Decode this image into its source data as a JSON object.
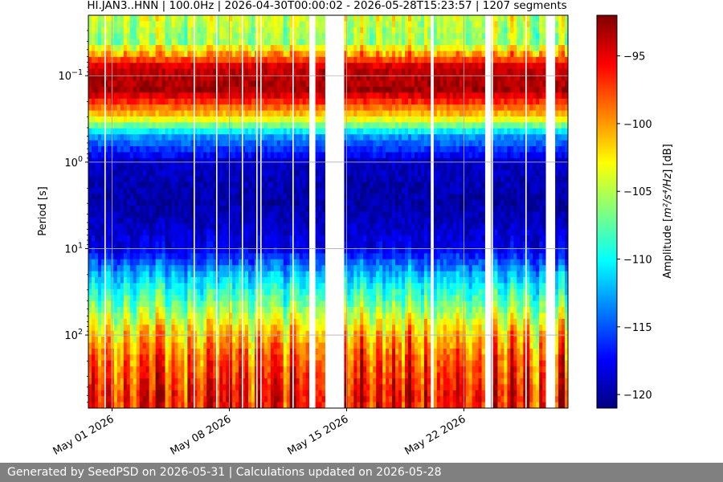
{
  "chart_data": {
    "type": "heatmap",
    "title": "HI.JAN3..HNN | 100.0Hz | 2026-04-30T00:00:02 - 2026-05-28T15:23:57 | 1207 segments",
    "ylabel": "Period [s]",
    "y_scale": "log",
    "y_axis_inverted": true,
    "x_ticks": [
      "May 01 2026",
      "May 08 2026",
      "May 15 2026",
      "May 22 2026"
    ],
    "x_range_days": [
      "2026-04-30",
      "2026-05-28"
    ],
    "y_ticks": [
      {
        "value": 0.1,
        "base": "10",
        "exp": "−1"
      },
      {
        "value": 1,
        "base": "10",
        "exp": "0"
      },
      {
        "value": 10,
        "base": "10",
        "exp": "1"
      },
      {
        "value": 100,
        "base": "10",
        "exp": "2"
      }
    ],
    "colorbar": {
      "label_prefix": "Amplitude [",
      "label_unit": "m²/s⁴/Hz",
      "label_suffix": "] [dB]",
      "ticks": [
        "−95",
        "−100",
        "−105",
        "−110",
        "−115",
        "−120"
      ],
      "range_db": [
        -121,
        -92
      ],
      "colormap": "jet"
    },
    "data_gaps": [
      "2026-05-13 to 2026-05-14",
      "2026-05-15 (partial)",
      "2026-05-21 (partial)",
      "2026-05-24 (partial)"
    ],
    "amplitude_profile_db": {
      "periods_s": [
        0.02,
        0.04,
        0.08,
        0.15,
        0.3,
        0.5,
        1,
        3,
        10,
        20,
        50,
        100,
        200,
        500
      ],
      "values": [
        -104,
        -106,
        -94,
        -93,
        -102,
        -113,
        -119,
        -120,
        -118,
        -112,
        -106,
        -101,
        -98,
        -96
      ]
    },
    "grid": true
  },
  "footer": {
    "text": "Generated by SeedPSD on 2026-05-31 | Calculations updated on 2026-05-28"
  }
}
